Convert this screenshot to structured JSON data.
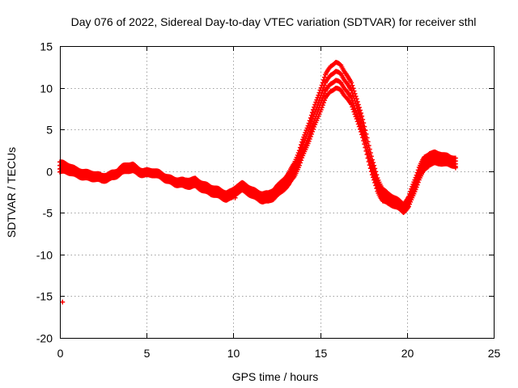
{
  "chart_data": {
    "type": "scatter",
    "title": "Day 076 of 2022, Sidereal Day-to-day VTEC variation (SDTVAR) for receiver sthl",
    "xlabel": "GPS time / hours",
    "ylabel": "SDTVAR / TECUs",
    "xlim": [
      0,
      25
    ],
    "ylim": [
      -20,
      15
    ],
    "x_ticks": [
      0,
      5,
      10,
      15,
      20,
      25
    ],
    "y_ticks": [
      15,
      10,
      5,
      0,
      -5,
      -10,
      -15,
      -20
    ],
    "grid": true,
    "marker": "plus",
    "color": "#ff0000",
    "series": [
      {
        "name": "SDTVAR",
        "trend_x": [
          0.0,
          0.3,
          0.6,
          0.9,
          1.2,
          1.5,
          1.8,
          2.1,
          2.4,
          2.7,
          3.0,
          3.3,
          3.6,
          3.9,
          4.2,
          4.5,
          4.8,
          5.1,
          5.4,
          5.7,
          6.0,
          6.3,
          6.6,
          6.9,
          7.2,
          7.5,
          7.8,
          8.1,
          8.4,
          8.7,
          9.0,
          9.3,
          9.6,
          9.9,
          10.2,
          10.5,
          10.8,
          11.1,
          11.4,
          11.7,
          12.0,
          12.3,
          12.6,
          12.9,
          13.2,
          13.5,
          13.8,
          14.1,
          14.4,
          14.7,
          15.0,
          15.3,
          15.6,
          15.9,
          16.2,
          16.5,
          16.8,
          17.1,
          17.4,
          17.7,
          18.0,
          18.3,
          18.6,
          18.9,
          19.2,
          19.5,
          19.8,
          20.1,
          20.4,
          20.7,
          21.0,
          21.3,
          21.6,
          21.9,
          22.2,
          22.5,
          22.8
        ],
        "trend_y": [
          0.5,
          0.3,
          0.1,
          -0.1,
          -0.2,
          -0.4,
          -0.6,
          -0.8,
          -0.9,
          -0.7,
          -0.4,
          -0.2,
          0.1,
          0.3,
          0.4,
          0.1,
          -0.1,
          -0.2,
          -0.3,
          -0.5,
          -0.7,
          -0.9,
          -1.2,
          -1.4,
          -1.6,
          -1.5,
          -1.3,
          -1.6,
          -2.0,
          -2.4,
          -2.6,
          -2.8,
          -2.9,
          -2.7,
          -2.2,
          -2.0,
          -2.3,
          -2.6,
          -2.8,
          -3.1,
          -3.2,
          -2.9,
          -2.3,
          -1.5,
          -0.8,
          0.2,
          1.5,
          3.2,
          5.0,
          6.8,
          8.6,
          10.1,
          11.0,
          11.4,
          11.2,
          10.4,
          9.3,
          7.5,
          5.3,
          3.0,
          0.5,
          -1.5,
          -2.8,
          -3.4,
          -3.7,
          -4.0,
          -4.3,
          -3.6,
          -2.0,
          -0.4,
          0.8,
          1.5,
          1.7,
          1.6,
          1.3,
          1.1,
          1.0
        ],
        "spread": [
          1.2,
          1.0,
          0.9,
          0.8,
          0.8,
          0.8,
          0.8,
          0.7,
          0.7,
          0.7,
          0.7,
          0.7,
          0.8,
          0.8,
          0.8,
          0.7,
          0.6,
          0.6,
          0.6,
          0.6,
          0.6,
          0.6,
          0.7,
          0.7,
          0.8,
          0.9,
          0.9,
          0.9,
          0.9,
          0.9,
          0.9,
          0.9,
          0.9,
          0.9,
          0.9,
          0.9,
          0.9,
          0.9,
          0.9,
          1.0,
          1.0,
          1.1,
          1.2,
          1.3,
          1.4,
          1.6,
          1.8,
          2.0,
          2.2,
          2.4,
          2.6,
          2.8,
          3.0,
          3.1,
          3.0,
          2.8,
          2.6,
          2.4,
          2.2,
          2.0,
          1.8,
          1.6,
          1.4,
          1.2,
          1.1,
          1.0,
          1.0,
          1.2,
          1.4,
          1.5,
          1.5,
          1.4,
          1.3,
          1.2,
          1.1,
          1.0,
          1.0
        ],
        "outliers": [
          {
            "x": 0.15,
            "y": -15.7
          },
          {
            "x": 10.1,
            "y": -3.2
          },
          {
            "x": 22.8,
            "y": 0.4
          }
        ]
      }
    ]
  }
}
